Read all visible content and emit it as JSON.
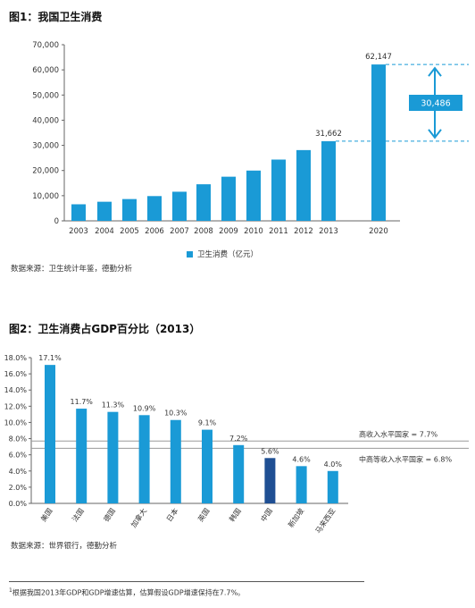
{
  "page": {
    "figure1_title": "图1：我国卫生消费",
    "figure1_source": "数据来源：卫生统计年鉴，德勤分析",
    "figure2_title": "图2：卫生消费占GDP百分比（2013）",
    "figure2_source": "数据来源：世界银行，德勤分析",
    "footnote_mark": "1",
    "footnote": "根据我国2013年GDP和GDP增速估算，估算假设GDP增速保持在7.7%。"
  },
  "colors": {
    "bar": "#1a9ad6",
    "bar_highlight": "#1f4f93",
    "dashed": "#1a9ad6",
    "reference_line": "#9a9a9a"
  },
  "chart_data": [
    {
      "type": "bar",
      "title": "图1：我国卫生消费",
      "categories": [
        "2003",
        "2004",
        "2005",
        "2006",
        "2007",
        "2008",
        "2009",
        "2010",
        "2011",
        "2012",
        "2013",
        "2020"
      ],
      "series": [
        {
          "name": "卫生消费（亿元）",
          "values": [
            6584,
            7590,
            8660,
            9843,
            11574,
            14535,
            17542,
            19980,
            24346,
            28119,
            31662,
            62147
          ]
        }
      ],
      "data_labels": {
        "2013": "31,662",
        "2020": "62,147"
      },
      "yticks": [
        "0",
        "10,000",
        "20,000",
        "30,000",
        "40,000",
        "50,000",
        "60,000",
        "70,000"
      ],
      "ylim": [
        0,
        70000
      ],
      "legend": "卫生消费（亿元）",
      "legend_position": "bottom",
      "annotation": {
        "text": "30,486",
        "from": 31662,
        "to": 62147
      }
    },
    {
      "type": "bar",
      "title": "图2：卫生消费占GDP百分比（2013）",
      "categories": [
        "美国",
        "法国",
        "德国",
        "加拿大",
        "日本",
        "英国",
        "韩国",
        "中国",
        "新加坡",
        "马来西亚"
      ],
      "values": [
        17.1,
        11.7,
        11.3,
        10.9,
        10.3,
        9.1,
        7.2,
        5.6,
        4.6,
        4.0
      ],
      "value_labels": [
        "17.1%",
        "11.7%",
        "11.3%",
        "10.9%",
        "10.3%",
        "9.1%",
        "7.2%",
        "5.6%",
        "4.6%",
        "4.0%"
      ],
      "highlight": "中国",
      "yticks": [
        "0.0%",
        "2.0%",
        "4.0%",
        "6.0%",
        "8.0%",
        "10.0%",
        "12.0%",
        "14.0%",
        "16.0%",
        "18.0%"
      ],
      "ylim": [
        0,
        18
      ],
      "reference_lines": [
        {
          "label": "高收入水平国家 = 7.7%",
          "value": 7.7
        },
        {
          "label": "中高等收入水平国家 = 6.8%",
          "value": 6.8
        }
      ],
      "grid": false
    }
  ]
}
